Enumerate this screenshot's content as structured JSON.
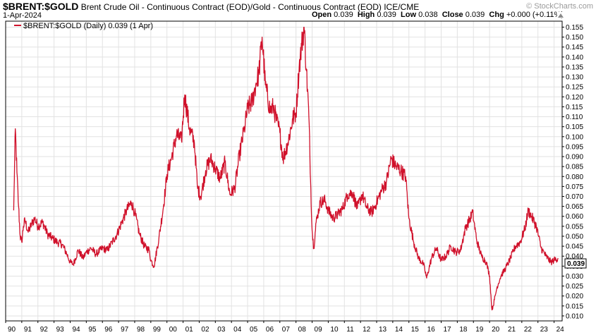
{
  "header": {
    "symbol": "$BRENT:$GOLD",
    "description": "Brent Crude Oil - Continuous Contract (EOD)/Gold - Continuous Contract (EOD) ICE/CME",
    "date": "1-Apr-2024",
    "open_label": "Open",
    "open": "0.039",
    "high_label": "High",
    "high": "0.039",
    "low_label": "Low",
    "low": "0.038",
    "close_label": "Close",
    "close": "0.039",
    "chg_label": "Chg",
    "chg": "+0.000 (+0.11%)",
    "watermark": "© StockCharts.com"
  },
  "legend": {
    "label": "$BRENT:$GOLD (Daily) 0.039 (1 Apr)"
  },
  "chart_data": {
    "type": "line",
    "x_tick_labels": [
      "90",
      "91",
      "92",
      "93",
      "94",
      "95",
      "96",
      "97",
      "98",
      "99",
      "00",
      "01",
      "02",
      "03",
      "04",
      "05",
      "06",
      "07",
      "08",
      "09",
      "10",
      "11",
      "12",
      "13",
      "14",
      "15",
      "16",
      "17",
      "18",
      "19",
      "20",
      "21",
      "22",
      "23",
      "24"
    ],
    "y_tick_labels": [
      "0.010",
      "0.015",
      "0.020",
      "0.025",
      "0.030",
      "0.035",
      "0.040",
      "0.045",
      "0.050",
      "0.055",
      "0.060",
      "0.065",
      "0.070",
      "0.075",
      "0.080",
      "0.085",
      "0.090",
      "0.095",
      "0.100",
      "0.105",
      "0.110",
      "0.115",
      "0.120",
      "0.125",
      "0.130",
      "0.135",
      "0.140",
      "0.145",
      "0.150",
      "0.155"
    ],
    "ylim": [
      0.0075,
      0.158
    ],
    "x_range": [
      1990.0,
      2024.5
    ],
    "last_value_label": "0.039",
    "grid": true,
    "legend_position": "top-left",
    "colors": {
      "series": "#d0112b",
      "grid": "#e2e2e2",
      "axis": "#000000"
    },
    "series": [
      {
        "name": "$BRENT:$GOLD (Daily)",
        "x": [
          1990.5,
          1990.6,
          1990.7,
          1990.8,
          1990.9,
          1991.0,
          1991.1,
          1991.2,
          1991.4,
          1991.6,
          1991.8,
          1992.0,
          1992.3,
          1992.6,
          1992.9,
          1993.2,
          1993.5,
          1993.8,
          1994.0,
          1994.2,
          1994.5,
          1994.8,
          1995.0,
          1995.3,
          1995.6,
          1996.0,
          1996.3,
          1996.6,
          1996.9,
          1997.2,
          1997.5,
          1997.8,
          1998.0,
          1998.3,
          1998.6,
          1998.9,
          1999.0,
          1999.2,
          1999.5,
          1999.8,
          2000.0,
          2000.3,
          2000.6,
          2000.9,
          2001.1,
          2001.4,
          2001.7,
          2001.9,
          2002.1,
          2002.4,
          2002.7,
          2003.0,
          2003.3,
          2003.6,
          2003.9,
          2004.2,
          2004.5,
          2004.8,
          2005.0,
          2005.3,
          2005.5,
          2005.7,
          2005.9,
          2006.1,
          2006.4,
          2006.6,
          2006.8,
          2007.0,
          2007.2,
          2007.5,
          2007.8,
          2008.0,
          2008.2,
          2008.35,
          2008.5,
          2008.65,
          2008.8,
          2008.9,
          2009.0,
          2009.1,
          2009.25,
          2009.5,
          2009.8,
          2010.0,
          2010.3,
          2010.6,
          2010.9,
          2011.2,
          2011.5,
          2011.8,
          2012.1,
          2012.4,
          2012.7,
          2013.0,
          2013.3,
          2013.6,
          2013.9,
          2014.2,
          2014.5,
          2014.8,
          2015.0,
          2015.3,
          2015.6,
          2015.9,
          2016.1,
          2016.4,
          2016.7,
          2017.0,
          2017.3,
          2017.6,
          2017.9,
          2018.2,
          2018.5,
          2018.8,
          2018.95,
          2019.2,
          2019.5,
          2019.8,
          2020.0,
          2020.15,
          2020.3,
          2020.45,
          2020.7,
          2021.0,
          2021.3,
          2021.6,
          2021.9,
          2022.2,
          2022.4,
          2022.6,
          2022.9,
          2023.2,
          2023.5,
          2023.8,
          2024.0,
          2024.25
        ],
        "y": [
          0.063,
          0.104,
          0.082,
          0.065,
          0.05,
          0.047,
          0.055,
          0.058,
          0.052,
          0.056,
          0.059,
          0.055,
          0.057,
          0.051,
          0.049,
          0.047,
          0.046,
          0.041,
          0.037,
          0.036,
          0.043,
          0.039,
          0.042,
          0.044,
          0.041,
          0.044,
          0.043,
          0.047,
          0.051,
          0.057,
          0.063,
          0.067,
          0.062,
          0.051,
          0.045,
          0.043,
          0.038,
          0.035,
          0.049,
          0.066,
          0.081,
          0.09,
          0.101,
          0.098,
          0.121,
          0.104,
          0.097,
          0.074,
          0.07,
          0.083,
          0.089,
          0.084,
          0.079,
          0.087,
          0.071,
          0.074,
          0.091,
          0.104,
          0.114,
          0.118,
          0.126,
          0.132,
          0.15,
          0.126,
          0.113,
          0.115,
          0.108,
          0.102,
          0.089,
          0.097,
          0.109,
          0.112,
          0.135,
          0.146,
          0.155,
          0.133,
          0.11,
          0.079,
          0.053,
          0.044,
          0.057,
          0.067,
          0.068,
          0.063,
          0.059,
          0.061,
          0.064,
          0.071,
          0.072,
          0.064,
          0.071,
          0.064,
          0.062,
          0.067,
          0.073,
          0.077,
          0.089,
          0.085,
          0.083,
          0.08,
          0.059,
          0.047,
          0.039,
          0.036,
          0.029,
          0.039,
          0.044,
          0.038,
          0.04,
          0.045,
          0.042,
          0.043,
          0.054,
          0.059,
          0.062,
          0.048,
          0.04,
          0.037,
          0.03,
          0.013,
          0.018,
          0.024,
          0.03,
          0.034,
          0.039,
          0.045,
          0.047,
          0.054,
          0.063,
          0.06,
          0.055,
          0.044,
          0.04,
          0.037,
          0.038,
          0.039
        ]
      }
    ]
  }
}
